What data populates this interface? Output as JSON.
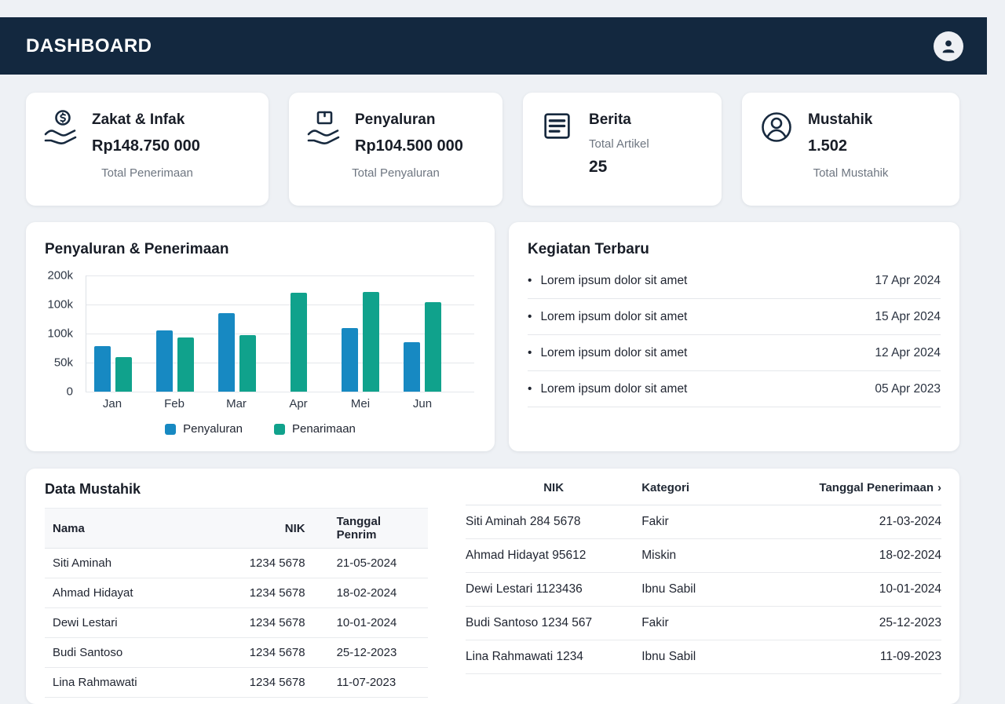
{
  "header": {
    "title": "DASHBOARD"
  },
  "stat_cards": {
    "zakat": {
      "title": "Zakat & Infak",
      "value": "Rp148.750 000",
      "subtitle": "Total Penerimaan"
    },
    "penyaluran": {
      "title": "Penyaluran",
      "value": "Rp104.500 000",
      "subtitle": "Total Penyaluran"
    },
    "berita": {
      "title": "Berita",
      "subtitle": "Total Artikel",
      "value": "25"
    },
    "mustahik": {
      "title": "Mustahik",
      "value": "1.502",
      "subtitle": "Total Mustahik"
    }
  },
  "chart_data": {
    "type": "bar",
    "title": "Penyaluran & Penerimaan",
    "categories": [
      "Jan",
      "Feb",
      "Mar",
      "Apr",
      "Mei",
      "Jun"
    ],
    "series": [
      {
        "name": "Penyaluran",
        "color": "#1789c2",
        "values": [
          78,
          105,
          135,
          null,
          109,
          85
        ]
      },
      {
        "name": "Penarimaan",
        "color": "#10a28c",
        "values": [
          59,
          93,
          97,
          170,
          172,
          154
        ]
      }
    ],
    "y_ticks": [
      "200k",
      "100k",
      "100k",
      "50k",
      "0"
    ],
    "ylim": [
      0,
      200
    ],
    "unit": "k",
    "grid": true,
    "legend_position": "bottom"
  },
  "activities": {
    "title": "Kegiatan Terbaru",
    "bullet": "•",
    "items": [
      {
        "text": "Lorem ipsum dolor sit amet",
        "date": "17 Apr 2024"
      },
      {
        "text": "Lorem ipsum dolor sit amet",
        "date": "15 Apr 2024"
      },
      {
        "text": "Lorem ipsum dolor sit amet",
        "date": "12 Apr 2024"
      },
      {
        "text": "Lorem ipsum dolor sit amet",
        "date": "05 Apr 2023"
      }
    ]
  },
  "mustahik_table": {
    "title": "Data Mustahik",
    "headers": [
      "Nama",
      "NIK",
      "Tanggal Penrim"
    ],
    "rows": [
      [
        "Siti Aminah",
        "1234 5678",
        "21-05-2024"
      ],
      [
        "Ahmad Hidayat",
        "1234 5678",
        "18-02-2024"
      ],
      [
        "Dewi Lestari",
        "1234 5678",
        "10-01-2024"
      ],
      [
        "Budi Santoso",
        "1234 5678",
        "25-12-2023"
      ],
      [
        "Lina Rahmawati",
        "1234 5678",
        "11-07-2023"
      ]
    ]
  },
  "detail_table": {
    "headers": [
      "NIK",
      "Kategori",
      "Tanggal Penerimaan"
    ],
    "sort_chevron": "›",
    "rows": [
      [
        "Siti Aminah  284 5678",
        "Fakir",
        "21-03-2024"
      ],
      [
        "Ahmad Hidayat 95612",
        "Miskin",
        "18-02-2024"
      ],
      [
        "Dewi Lestari 1123436",
        "Ibnu Sabil",
        "10-01-2024"
      ],
      [
        "Budi Santoso 1234 567",
        "Fakir",
        "25-12-2023"
      ],
      [
        "Lina Rahmawati 1234",
        "Ibnu Sabil",
        "11-09-2023"
      ]
    ]
  },
  "colors": {
    "navbar": "#13283f",
    "background": "#eef1f5",
    "bar_blue": "#1789c2",
    "bar_teal": "#10a28c"
  }
}
